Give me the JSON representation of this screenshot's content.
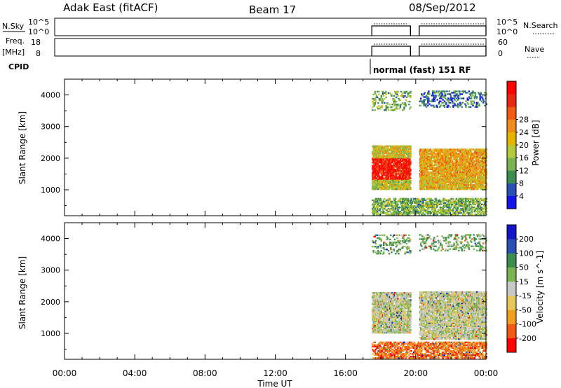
{
  "header": {
    "station": "Adak East (fitACF)",
    "beam": "Beam 17",
    "date": "08/Sep/2012"
  },
  "top_panels": {
    "nsky_label": "N.Sky",
    "nsky_ticks": [
      "10^5",
      "10^0"
    ],
    "nsearch_label": "N.Search",
    "nsearch_ticks": [
      "10^5",
      "10^0"
    ],
    "freq_label": "Freq.",
    "freq_unit": "[MHz]",
    "freq_ticks": [
      "18",
      "8"
    ],
    "nave_label": "Nave",
    "nave_ticks": [
      "60",
      "0"
    ],
    "cpid_label": "CPID",
    "cpid_text": "normal (fast) 151 RF"
  },
  "colors": {
    "power": [
      "#1414e6",
      "#2850b4",
      "#3c8c50",
      "#78b450",
      "#b4c83c",
      "#e6b400",
      "#f08c1e",
      "#f05a14",
      "#e62814",
      "#ff0000"
    ],
    "velocity": [
      "#ff0000",
      "#f05a14",
      "#f0a01e",
      "#e6c85a",
      "#c8c8c8",
      "#78b450",
      "#3c8c50",
      "#2850b4",
      "#1414c8"
    ]
  },
  "chart_data": [
    {
      "type": "heatmap",
      "ylabel": "Slant Range [km]",
      "xlabel": "Time UT",
      "x_ticks": [
        "00:00",
        "04:00",
        "08:00",
        "12:00",
        "16:00",
        "20:00",
        "00:00"
      ],
      "xlim_hours": [
        0,
        24
      ],
      "y_ticks": [
        1000,
        2000,
        3000,
        4000
      ],
      "ylim": [
        180,
        4500
      ],
      "colorbar": {
        "label": "Power [dB]",
        "ticks": [
          4,
          8,
          12,
          16,
          20,
          24,
          28
        ],
        "range": [
          0,
          30
        ]
      },
      "data_windows_hours": [
        [
          17.5,
          19.7
        ],
        [
          20.2,
          24.0
        ]
      ],
      "regions": [
        {
          "t0": 17.5,
          "t1": 19.7,
          "r0": 1300,
          "r1": 2000,
          "level": 0.88
        },
        {
          "t0": 17.5,
          "t1": 19.7,
          "r0": 2000,
          "r1": 2400,
          "level": 0.5
        },
        {
          "t0": 17.5,
          "t1": 19.7,
          "r0": 1000,
          "r1": 1300,
          "level": 0.45
        },
        {
          "t0": 20.2,
          "t1": 24.0,
          "r0": 1400,
          "r1": 2300,
          "level": 0.6
        },
        {
          "t0": 20.2,
          "t1": 24.0,
          "r0": 1000,
          "r1": 1400,
          "level": 0.55
        },
        {
          "t0": 17.5,
          "t1": 24.0,
          "r0": 200,
          "r1": 700,
          "level": 0.35
        },
        {
          "t0": 17.5,
          "t1": 19.7,
          "r0": 3500,
          "r1": 4100,
          "level": 0.35
        },
        {
          "t0": 20.2,
          "t1": 24.0,
          "r0": 3600,
          "r1": 4100,
          "level": 0.2
        }
      ]
    },
    {
      "type": "heatmap",
      "ylabel": "Slant Range [km]",
      "xlabel": "Time UT",
      "x_ticks": [
        "00:00",
        "04:00",
        "08:00",
        "12:00",
        "16:00",
        "20:00",
        "00:00"
      ],
      "xlim_hours": [
        0,
        24
      ],
      "y_ticks": [
        1000,
        2000,
        3000,
        4000
      ],
      "ylim": [
        180,
        4500
      ],
      "colorbar": {
        "label": "Velocity [m s^-1]",
        "ticks": [
          -200,
          -100,
          -50,
          -15,
          15,
          50,
          100,
          200
        ],
        "range": [
          -250,
          250
        ]
      },
      "data_windows_hours": [
        [
          17.5,
          19.7
        ],
        [
          20.2,
          24.0
        ]
      ],
      "regions": [
        {
          "t0": 17.5,
          "t1": 19.7,
          "r0": 1000,
          "r1": 2300,
          "level": 0.0
        },
        {
          "t0": 20.2,
          "t1": 24.0,
          "r0": 800,
          "r1": 2300,
          "level": 0.0
        },
        {
          "t0": 17.5,
          "t1": 24.0,
          "r0": 200,
          "r1": 700,
          "level": -0.6
        },
        {
          "t0": 17.5,
          "t1": 19.7,
          "r0": 3500,
          "r1": 4100,
          "level": 0.3
        },
        {
          "t0": 20.2,
          "t1": 24.0,
          "r0": 3600,
          "r1": 4100,
          "level": 0.3
        }
      ]
    }
  ]
}
